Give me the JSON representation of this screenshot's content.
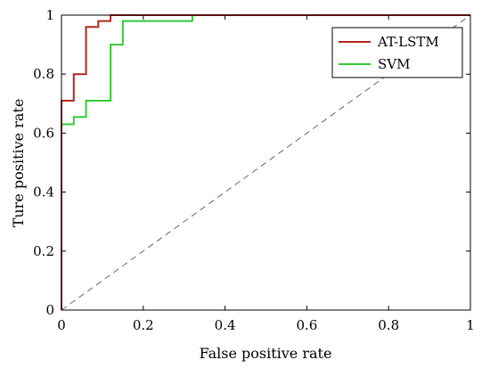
{
  "chart_data": {
    "type": "line",
    "xlabel": "False positive rate",
    "ylabel": "Ture positive rate",
    "xlim": [
      0,
      1
    ],
    "ylim": [
      0,
      1
    ],
    "xticks": [
      "0",
      "0.2",
      "0.4",
      "0.6",
      "0.8",
      "1"
    ],
    "yticks": [
      "0",
      "0.2",
      "0.4",
      "0.6",
      "0.8",
      "1"
    ],
    "grid": false,
    "legend_position": "top-right",
    "series": [
      {
        "name": "AT-LSTM",
        "color": "#b2261e",
        "style": "step",
        "x": [
          0,
          0,
          0.03,
          0.03,
          0.06,
          0.06,
          0.09,
          0.09,
          0.12,
          0.12,
          0.15,
          0.15,
          0.32,
          0.32,
          1.0
        ],
        "y": [
          0,
          0.71,
          0.71,
          0.8,
          0.8,
          0.96,
          0.96,
          0.98,
          0.98,
          1.0,
          1.0,
          1.0,
          1.0,
          1.0,
          1.0
        ]
      },
      {
        "name": "SVM",
        "color": "#33cc33",
        "style": "step",
        "x": [
          0,
          0,
          0.03,
          0.03,
          0.06,
          0.06,
          0.12,
          0.12,
          0.15,
          0.15,
          0.32,
          0.32,
          1.0
        ],
        "y": [
          0,
          0.63,
          0.63,
          0.655,
          0.655,
          0.71,
          0.71,
          0.9,
          0.9,
          0.98,
          0.98,
          1.0,
          1.0
        ]
      }
    ],
    "reference_line": {
      "style": "dashed",
      "color": "#666666",
      "x": [
        0,
        1
      ],
      "y": [
        0,
        1
      ]
    }
  }
}
